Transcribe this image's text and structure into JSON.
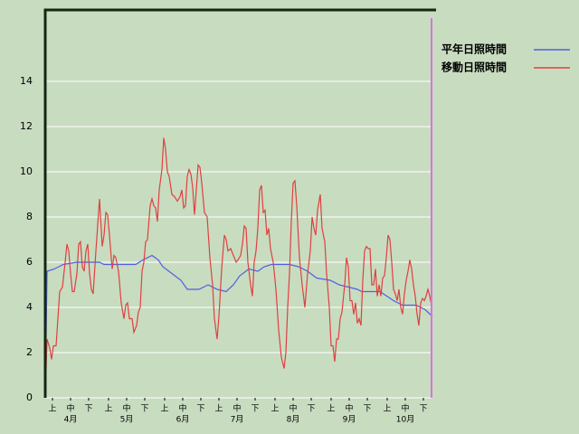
{
  "chart_data": {
    "type": "line",
    "xlim": [
      0,
      214
    ],
    "ylim": [
      0,
      17.2
    ],
    "yticks": [
      0,
      2,
      4,
      6,
      8,
      10,
      12,
      14
    ],
    "xticks": [
      {
        "value": 4,
        "label": "上"
      },
      {
        "value": 14,
        "label": "中"
      },
      {
        "value": 24,
        "label": "下"
      },
      {
        "value": 35,
        "label": "上"
      },
      {
        "value": 45,
        "label": "中"
      },
      {
        "value": 55,
        "label": "下"
      },
      {
        "value": 66,
        "label": "上"
      },
      {
        "value": 76,
        "label": "中"
      },
      {
        "value": 86,
        "label": "下"
      },
      {
        "value": 96,
        "label": "上"
      },
      {
        "value": 106,
        "label": "中"
      },
      {
        "value": 116,
        "label": "下"
      },
      {
        "value": 127,
        "label": "上"
      },
      {
        "value": 137,
        "label": "中"
      },
      {
        "value": 147,
        "label": "下"
      },
      {
        "value": 158,
        "label": "上"
      },
      {
        "value": 168,
        "label": "中"
      },
      {
        "value": 178,
        "label": "下"
      },
      {
        "value": 189,
        "label": "上"
      },
      {
        "value": 199,
        "label": "中"
      },
      {
        "value": 209,
        "label": "下"
      }
    ],
    "month_ticks": [
      {
        "value": 14,
        "label": "4月"
      },
      {
        "value": 45,
        "label": "5月"
      },
      {
        "value": 76,
        "label": "6月"
      },
      {
        "value": 106,
        "label": "7月"
      },
      {
        "value": 137,
        "label": "8月"
      },
      {
        "value": 168,
        "label": "9月"
      },
      {
        "value": 199,
        "label": "10月"
      }
    ],
    "grid": true,
    "legend": "right",
    "series": [
      {
        "name": "平年日照時間",
        "color": "#5060e0",
        "x": [
          0,
          1,
          5,
          7.5,
          10,
          17.5,
          30,
          32.5,
          50,
          54,
          59,
          62.5,
          65,
          70,
          75,
          78.5,
          85,
          90,
          95,
          100,
          104,
          107.5,
          112.5,
          117.5,
          121,
          125,
          135,
          140,
          145,
          150,
          157.5,
          162.5,
          167.5,
          172.5,
          175,
          185,
          192.5,
          197.5,
          205,
          210,
          214
        ],
        "values": [
          0,
          5.6,
          5.7,
          5.8,
          5.9,
          6.0,
          6.0,
          5.9,
          5.9,
          6.1,
          6.3,
          6.1,
          5.8,
          5.5,
          5.2,
          4.8,
          4.8,
          5.0,
          4.8,
          4.7,
          5.0,
          5.4,
          5.7,
          5.6,
          5.8,
          5.9,
          5.9,
          5.8,
          5.6,
          5.3,
          5.2,
          5.0,
          4.9,
          4.8,
          4.7,
          4.7,
          4.3,
          4.1,
          4.1,
          3.9,
          3.6
        ]
      },
      {
        "name": "移動日照時間",
        "color": "#e04040",
        "x": [
          0,
          1,
          2.5,
          3.5,
          4.5,
          6,
          7,
          8,
          9.5,
          11,
          12,
          13,
          14,
          15,
          16,
          17.5,
          18.5,
          19.5,
          20.5,
          21.5,
          22.5,
          23.5,
          24.5,
          25.5,
          26.5,
          28,
          30,
          31.5,
          32.5,
          33.5,
          34.5,
          35.5,
          37,
          38,
          39,
          40.5,
          42,
          43.5,
          44.5,
          45.5,
          46.5,
          48,
          49,
          50.5,
          51.5,
          52.5,
          53.5,
          54.5,
          55.5,
          56.5,
          58,
          59,
          60,
          61,
          62,
          63,
          64.5,
          65.5,
          66.5,
          67.5,
          68.5,
          70,
          71.5,
          73,
          74.5,
          75.5,
          76.5,
          77.5,
          78.5,
          79.5,
          80.5,
          81.5,
          82.5,
          83.5,
          84.5,
          85.5,
          86.5,
          88,
          89.5,
          91,
          92.5,
          93.5,
          95,
          96,
          97.5,
          99,
          100,
          101,
          102.5,
          104,
          105.5,
          106.5,
          108,
          109,
          110,
          111,
          112,
          113.5,
          114.5,
          115.5,
          116.5,
          117.5,
          118.5,
          119.5,
          120.5,
          121.5,
          122.5,
          123.5,
          124.5,
          126,
          127.5,
          129,
          130.5,
          132,
          133,
          134,
          135,
          136,
          137,
          138,
          139,
          140.5,
          142,
          143.5,
          145,
          146.5,
          147.5,
          148.5,
          149.5,
          150.5,
          152,
          153,
          154.5,
          155.5,
          157,
          158,
          159,
          160,
          161,
          162,
          163,
          164,
          165.5,
          166.5,
          167.5,
          168.5,
          169.5,
          170.5,
          171.5,
          172.5,
          173.5,
          174.5,
          175.5,
          176.5,
          177.5,
          178.5,
          179.5,
          180.5,
          181.5,
          182.5,
          183.5,
          184.5,
          185.5,
          186.5,
          187.5,
          188.5,
          189.5,
          190.5,
          191.5,
          192.5,
          193.5,
          194.5,
          195.5,
          196.5,
          197.5,
          198.5,
          199.5,
          200.5,
          201.5,
          202.5,
          203.5,
          204.5,
          205.5,
          206.5,
          207.5,
          208.5,
          209.5,
          210.5,
          211.5,
          212.5,
          213.5
        ],
        "values": [
          0,
          2.6,
          2.2,
          1.7,
          2.3,
          2.3,
          3.5,
          4.7,
          4.9,
          6.0,
          6.8,
          6.5,
          5.5,
          4.7,
          4.7,
          5.5,
          6.8,
          6.9,
          5.8,
          5.6,
          6.5,
          6.8,
          5.5,
          4.8,
          4.6,
          6.5,
          8.8,
          6.7,
          7.2,
          8.2,
          8.1,
          7.2,
          5.7,
          6.3,
          6.2,
          5.6,
          4.2,
          3.5,
          4.1,
          4.2,
          3.5,
          3.5,
          2.9,
          3.2,
          3.8,
          4.0,
          5.6,
          6.0,
          6.9,
          7.0,
          8.5,
          8.8,
          8.5,
          8.4,
          7.8,
          9.2,
          10.1,
          11.5,
          11.0,
          10.0,
          9.8,
          9.0,
          8.9,
          8.7,
          8.9,
          9.2,
          8.4,
          8.5,
          9.8,
          10.1,
          9.9,
          9.3,
          8.1,
          9.2,
          10.3,
          10.2,
          9.5,
          8.2,
          8.0,
          6.2,
          5.0,
          3.5,
          2.6,
          3.6,
          5.7,
          7.2,
          7.0,
          6.5,
          6.6,
          6.3,
          6.0,
          6.1,
          6.3,
          6.8,
          7.6,
          7.5,
          6.0,
          5.0,
          4.5,
          6.0,
          6.5,
          7.5,
          9.2,
          9.4,
          8.2,
          8.3,
          7.2,
          7.5,
          6.6,
          6.0,
          4.8,
          3.0,
          1.8,
          1.3,
          2.0,
          4.0,
          5.5,
          7.8,
          9.5,
          9.6,
          8.5,
          6.2,
          5.0,
          4.0,
          5.5,
          6.5,
          8.0,
          7.5,
          7.2,
          8.3,
          9.0,
          7.5,
          6.9,
          5.5,
          4.0,
          2.3,
          2.3,
          1.6,
          2.6,
          2.6,
          3.5,
          3.8,
          5.0,
          6.2,
          5.8,
          4.3,
          4.3,
          3.7,
          4.2,
          3.3,
          3.5,
          3.2,
          5.2,
          6.5,
          6.7,
          6.6,
          6.6,
          5.0,
          5.0,
          5.7,
          4.5,
          5.0,
          4.5,
          5.3,
          5.4,
          6.2,
          7.2,
          7.0,
          6.0,
          4.8,
          4.6,
          4.3,
          4.8,
          4.0,
          3.7,
          4.6,
          5.2,
          5.6,
          6.1,
          5.7,
          5.0,
          4.5,
          3.7,
          3.2,
          4.2,
          4.4,
          4.3,
          4.5,
          4.8,
          4.5,
          4.1
        ]
      }
    ]
  }
}
